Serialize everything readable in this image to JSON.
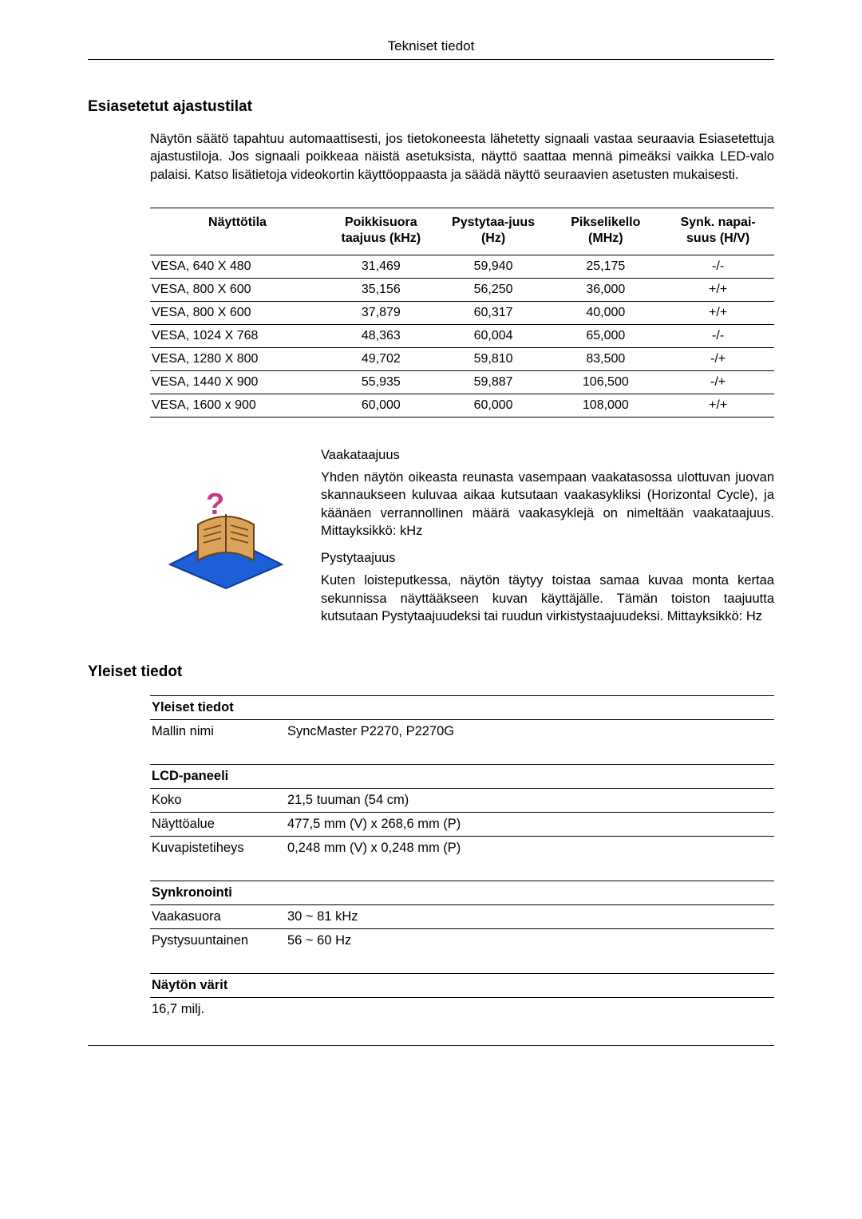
{
  "page_header": "Tekniset tiedot",
  "section1": {
    "heading": "Esiasetetut ajastustilat",
    "intro": "Näytön säätö tapahtuu automaattisesti, jos tietokoneesta lähetetty signaali vastaa seuraavia Esiasetettuja ajastustiloja. Jos signaali poikkeaa näistä asetuksista, näyttö saattaa mennä pimeäksi vaikka LED-valo palaisi. Katso lisätietoja videokortin käyttöoppaasta ja säädä näyttö seuraavien asetusten mukaisesti."
  },
  "timing_table": {
    "columns": [
      "Näyttötila",
      "Poikkisuora taajuus (kHz)",
      "Pystytaa-juus (Hz)",
      "Pikselikello (MHz)",
      "Synk. napai-suus (H/V)"
    ],
    "rows": [
      [
        "VESA, 640 X 480",
        "31,469",
        "59,940",
        "25,175",
        "-/-"
      ],
      [
        "VESA, 800 X 600",
        "35,156",
        "56,250",
        "36,000",
        "+/+"
      ],
      [
        "VESA, 800 X 600",
        "37,879",
        "60,317",
        "40,000",
        "+/+"
      ],
      [
        "VESA, 1024 X 768",
        "48,363",
        "60,004",
        "65,000",
        "-/-"
      ],
      [
        "VESA, 1280 X 800",
        "49,702",
        "59,810",
        "83,500",
        "-/+"
      ],
      [
        "VESA, 1440 X 900",
        "55,935",
        "59,887",
        "106,500",
        "-/+"
      ],
      [
        "VESA, 1600 x 900",
        "60,000",
        "60,000",
        "108,000",
        "+/+"
      ]
    ],
    "col_widths": [
      "28%",
      "18%",
      "18%",
      "18%",
      "18%"
    ]
  },
  "info": {
    "h_title": "Vaakataajuus",
    "h_body": "Yhden näytön oikeasta reunasta vasempaan vaakatasossa ulottuvan juovan skannaukseen kuluvaa aikaa kutsutaan vaakasykliksi (Horizontal Cycle), ja käänäen verrannollinen määrä vaakasyklejä on nimeltään vaakataajuus. Mittayksikkö: kHz",
    "v_title": "Pystytaajuus",
    "v_body": "Kuten loisteputkessa, näytön täytyy toistaa samaa kuvaa monta kertaa sekunnissa näyttääkseen kuvan käyttäjälle. Tämän toiston taajuutta kutsutaan Pystytaajuudeksi tai ruudun virkistystaajuudeksi. Mittayksikkö: Hz"
  },
  "section2": {
    "heading": "Yleiset tiedot"
  },
  "specs": {
    "general": {
      "title": "Yleiset tiedot",
      "rows": [
        [
          "Mallin nimi",
          "SyncMaster P2270, P2270G"
        ]
      ]
    },
    "lcd": {
      "title": "LCD-paneeli",
      "rows": [
        [
          "Koko",
          "21,5 tuuman (54 cm)"
        ],
        [
          "Näyttöalue",
          "477,5 mm (V) x 268,6 mm (P)"
        ],
        [
          "Kuvapistetiheys",
          "0,248 mm (V) x 0,248 mm (P)"
        ]
      ]
    },
    "sync": {
      "title": "Synkronointi",
      "rows": [
        [
          "Vaakasuora",
          "30 ~ 81 kHz"
        ],
        [
          "Pystysuuntainen",
          "56 ~ 60 Hz"
        ]
      ]
    },
    "colors": {
      "title": "Näytön värit",
      "rows": [
        [
          "16,7 milj.",
          ""
        ]
      ]
    }
  },
  "icon_colors": {
    "book_fill": "#d9a45a",
    "book_stroke": "#6b3f15",
    "arrow": "#1d5fd6",
    "q_mark": "#c43b8a"
  }
}
